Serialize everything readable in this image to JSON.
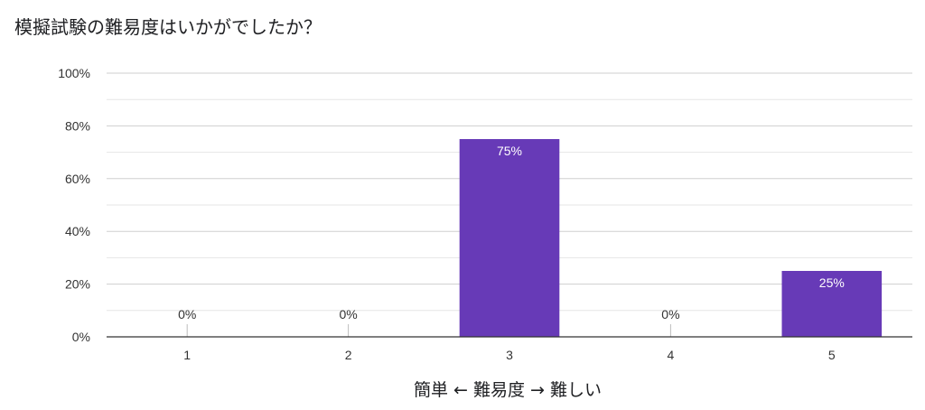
{
  "chart_data": {
    "type": "bar",
    "title": "模擬試験の難易度はいかがでしたか？",
    "xlabel": "簡単 ← 難易度 → 難しい",
    "ylabel": "",
    "categories": [
      "1",
      "2",
      "3",
      "4",
      "5"
    ],
    "values": [
      0,
      0,
      75,
      0,
      25
    ],
    "value_labels": [
      "0%",
      "0%",
      "75%",
      "0%",
      "25%"
    ],
    "ylim": [
      0,
      100
    ],
    "yticks": [
      0,
      20,
      40,
      60,
      80,
      100
    ],
    "ytick_labels": [
      "0%",
      "20%",
      "40%",
      "60%",
      "80%",
      "100%"
    ],
    "grid": true,
    "bar_color": "#673ab7"
  }
}
